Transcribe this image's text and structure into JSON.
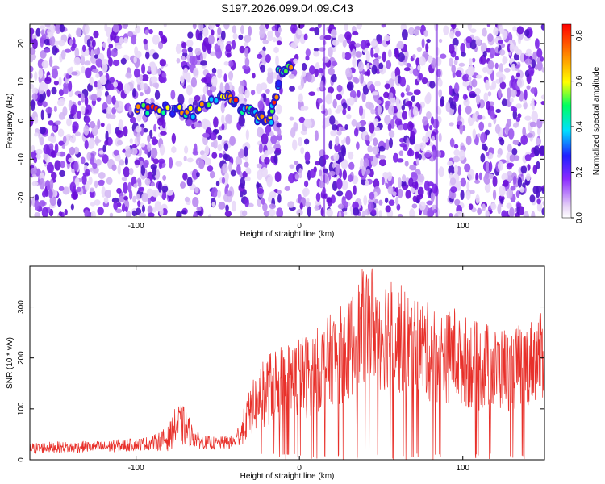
{
  "chart_data": [
    {
      "type": "heatmap",
      "title": "S197.2026.099.04.09.C43",
      "xlabel": "Height of straight line (km)",
      "ylabel": "Frequency (Hz)",
      "xlim": [
        -165,
        150
      ],
      "ylim": [
        -25,
        25
      ],
      "x_ticks": [
        -100,
        0,
        100
      ],
      "y_ticks": [
        20,
        10,
        0,
        -10,
        -20
      ],
      "colorbar": {
        "label": "Normalized spectral amplitude",
        "range": [
          0,
          0.85
        ],
        "ticks": [
          0.0,
          0.2,
          0.4,
          0.6,
          0.8
        ],
        "colors": [
          "#ffffff",
          "#e6d2f6",
          "#8c2bff",
          "#2020ff",
          "#00e0ff",
          "#00ff60",
          "#ffff00",
          "#ff8000",
          "#ff0000"
        ]
      },
      "features": [
        {
          "name": "signal track",
          "points": [
            [
              -100,
              3
            ],
            [
              -80,
              3
            ],
            [
              -65,
              2
            ],
            [
              -45,
              7
            ],
            [
              -35,
              3
            ],
            [
              -25,
              1
            ],
            [
              -18,
              0
            ],
            [
              -12,
              12
            ],
            [
              -5,
              14
            ]
          ],
          "peak_amplitude": 0.85
        },
        {
          "name": "vertical streak",
          "x": 15,
          "freq_range": [
            -25,
            25
          ]
        },
        {
          "name": "vertical streak",
          "x": 84,
          "freq_range": [
            -25,
            25
          ]
        }
      ]
    },
    {
      "type": "line",
      "xlabel": "Height of straight line (km)",
      "ylabel": "SNR (10 * v/v)",
      "xlim": [
        -165,
        150
      ],
      "ylim": [
        0,
        380
      ],
      "x_ticks": [
        -100,
        0,
        100
      ],
      "y_ticks": [
        0,
        100,
        200,
        300
      ],
      "color": "#e8302a",
      "series": [
        {
          "name": "SNR",
          "x": [
            -165,
            -150,
            -140,
            -130,
            -120,
            -110,
            -100,
            -90,
            -80,
            -75,
            -70,
            -65,
            -60,
            -50,
            -40,
            -35,
            -30,
            -25,
            -20,
            -15,
            -10,
            -5,
            0,
            5,
            10,
            15,
            20,
            25,
            30,
            35,
            40,
            45,
            50,
            55,
            60,
            65,
            70,
            75,
            80,
            85,
            90,
            95,
            100,
            105,
            110,
            115,
            120,
            125,
            130,
            135,
            140,
            145,
            150
          ],
          "values": [
            22,
            25,
            24,
            26,
            25,
            28,
            30,
            33,
            42,
            70,
            65,
            45,
            35,
            32,
            35,
            60,
            95,
            120,
            135,
            150,
            150,
            155,
            160,
            165,
            175,
            185,
            200,
            205,
            215,
            240,
            265,
            270,
            250,
            255,
            240,
            230,
            225,
            220,
            210,
            205,
            200,
            210,
            195,
            190,
            180,
            185,
            175,
            180,
            175,
            185,
            190,
            200,
            210
          ],
          "spread": [
            8,
            8,
            8,
            8,
            8,
            9,
            9,
            10,
            18,
            30,
            28,
            14,
            10,
            9,
            10,
            22,
            35,
            45,
            50,
            55,
            55,
            58,
            60,
            60,
            60,
            62,
            65,
            70,
            72,
            80,
            85,
            85,
            85,
            82,
            80,
            75,
            72,
            70,
            70,
            68,
            65,
            68,
            65,
            65,
            62,
            62,
            60,
            60,
            58,
            60,
            60,
            62,
            65
          ]
        }
      ]
    }
  ]
}
